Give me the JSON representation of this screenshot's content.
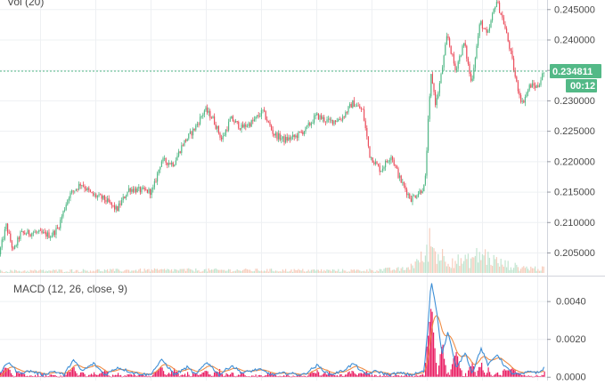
{
  "chart_data": [
    {
      "type": "candlestick",
      "pane": "price",
      "legend": "Vol (20)",
      "y_ticks": [
        0.205,
        0.21,
        0.215,
        0.22,
        0.225,
        0.23,
        0.235,
        0.24,
        0.245
      ],
      "ylim": [
        0.2012,
        0.2465
      ],
      "last_price": 0.234811,
      "last_price_label": "0.234811",
      "countdown": "00:12",
      "grid": true,
      "up_color": "#53b987",
      "down_color": "#eb4d5c",
      "price_anchors": [
        [
          0,
          0.2047
        ],
        [
          8,
          0.2094
        ],
        [
          16,
          0.2052
        ],
        [
          24,
          0.2081
        ],
        [
          40,
          0.2083
        ],
        [
          58,
          0.2078
        ],
        [
          66,
          0.209
        ],
        [
          78,
          0.2143
        ],
        [
          92,
          0.2164
        ],
        [
          104,
          0.2145
        ],
        [
          118,
          0.2138
        ],
        [
          132,
          0.212
        ],
        [
          146,
          0.2155
        ],
        [
          158,
          0.2152
        ],
        [
          172,
          0.215
        ],
        [
          182,
          0.2201
        ],
        [
          196,
          0.2196
        ],
        [
          206,
          0.2228
        ],
        [
          220,
          0.2255
        ],
        [
          231,
          0.2285
        ],
        [
          240,
          0.227
        ],
        [
          250,
          0.2235
        ],
        [
          260,
          0.227
        ],
        [
          272,
          0.2255
        ],
        [
          284,
          0.2264
        ],
        [
          296,
          0.2282
        ],
        [
          308,
          0.2245
        ],
        [
          320,
          0.2235
        ],
        [
          332,
          0.224
        ],
        [
          344,
          0.2252
        ],
        [
          356,
          0.2275
        ],
        [
          370,
          0.2265
        ],
        [
          384,
          0.227
        ],
        [
          397,
          0.2296
        ],
        [
          408,
          0.2283
        ],
        [
          416,
          0.221
        ],
        [
          428,
          0.2185
        ],
        [
          440,
          0.221
        ],
        [
          450,
          0.217
        ],
        [
          462,
          0.2138
        ],
        [
          472,
          0.215
        ],
        [
          478,
          0.216
        ],
        [
          481,
          0.225
        ],
        [
          485,
          0.2345
        ],
        [
          490,
          0.2292
        ],
        [
          496,
          0.234
        ],
        [
          503,
          0.2408
        ],
        [
          512,
          0.235
        ],
        [
          522,
          0.2395
        ],
        [
          530,
          0.2328
        ],
        [
          540,
          0.243
        ],
        [
          548,
          0.2405
        ],
        [
          558,
          0.2465
        ],
        [
          566,
          0.243
        ],
        [
          574,
          0.238
        ],
        [
          580,
          0.2332
        ],
        [
          587,
          0.2295
        ],
        [
          596,
          0.2325
        ],
        [
          604,
          0.2322
        ],
        [
          611,
          0.2345
        ]
      ]
    },
    {
      "type": "bar",
      "pane": "volume",
      "name": "Vol (20)",
      "max_value": 1.0,
      "volume_profile": [
        [
          0,
          0.04
        ],
        [
          80,
          0.05
        ],
        [
          200,
          0.06
        ],
        [
          400,
          0.05
        ],
        [
          455,
          0.08
        ],
        [
          478,
          0.35
        ],
        [
          482,
          0.75
        ],
        [
          486,
          0.45
        ],
        [
          500,
          0.3
        ],
        [
          520,
          0.22
        ],
        [
          540,
          0.38
        ],
        [
          560,
          0.2
        ],
        [
          580,
          0.12
        ],
        [
          611,
          0.08
        ]
      ]
    },
    {
      "type": "line",
      "pane": "macd",
      "legend": "MACD (12, 26, close, 9)",
      "y_ticks": [
        0.0,
        0.002,
        0.004
      ],
      "y_tick_labels": [
        "0.0000",
        "0.0020",
        "0.0040"
      ],
      "ylim": [
        -0.0002,
        0.0053
      ],
      "macd_color": "#3e8fd6",
      "signal_color": "#ef8c45",
      "histogram_color": "#e91e63",
      "macd_anchors": [
        [
          0,
          0.0002
        ],
        [
          10,
          0.0008
        ],
        [
          20,
          0.0002
        ],
        [
          35,
          0.0003
        ],
        [
          48,
          0.0001
        ],
        [
          60,
          0.0003
        ],
        [
          72,
          0.0001
        ],
        [
          82,
          0.0009
        ],
        [
          92,
          0.0003
        ],
        [
          105,
          0.0007
        ],
        [
          118,
          0.0001
        ],
        [
          132,
          0.0005
        ],
        [
          150,
          0.0002
        ],
        [
          168,
          0.0001
        ],
        [
          182,
          0.0009
        ],
        [
          196,
          0.0001
        ],
        [
          210,
          0.0005
        ],
        [
          220,
          0.0001
        ],
        [
          232,
          0.0008
        ],
        [
          246,
          0.0001
        ],
        [
          260,
          0.0006
        ],
        [
          272,
          0.0002
        ],
        [
          290,
          0.0004
        ],
        [
          306,
          0.0001
        ],
        [
          320,
          0.0002
        ],
        [
          340,
          0.0001
        ],
        [
          356,
          0.0006
        ],
        [
          370,
          0.0001
        ],
        [
          384,
          0.0003
        ],
        [
          397,
          0.0007
        ],
        [
          410,
          0.0001
        ],
        [
          422,
          0.0003
        ],
        [
          436,
          0.0001
        ],
        [
          448,
          0.0002
        ],
        [
          462,
          0.0001
        ],
        [
          476,
          0.0003
        ],
        [
          480,
          0.0025
        ],
        [
          484,
          0.0051
        ],
        [
          490,
          0.0035
        ],
        [
          496,
          0.0012
        ],
        [
          503,
          0.0024
        ],
        [
          512,
          0.0004
        ],
        [
          522,
          0.0013
        ],
        [
          530,
          0.0002
        ],
        [
          540,
          0.0015
        ],
        [
          548,
          0.0006
        ],
        [
          558,
          0.0012
        ],
        [
          566,
          0.0006
        ],
        [
          574,
          0.0002
        ],
        [
          584,
          0.0001
        ],
        [
          596,
          0.0003
        ],
        [
          605,
          0.0002
        ],
        [
          611,
          0.0005
        ]
      ]
    }
  ]
}
